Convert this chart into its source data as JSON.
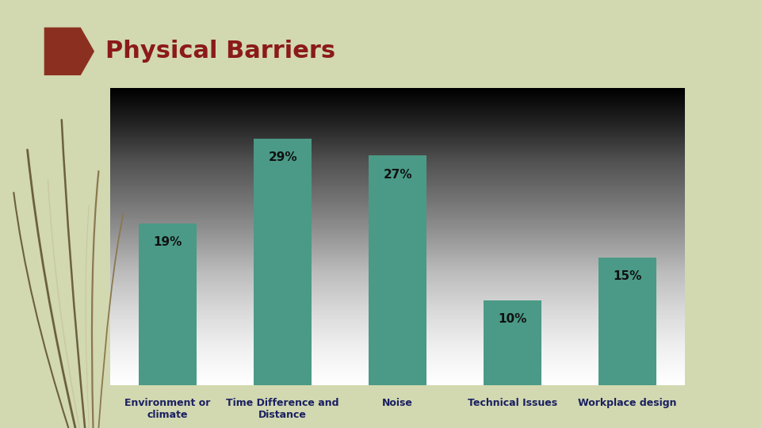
{
  "title": "Physical Barriers",
  "title_color": "#8B1A1A",
  "title_fontsize": 22,
  "categories": [
    "Environment or\nclimate",
    "Time Difference and\nDistance",
    "Noise",
    "Technical Issues",
    "Workplace design"
  ],
  "values": [
    19,
    29,
    27,
    10,
    15
  ],
  "bar_color": "#4A9A87",
  "label_fontsize": 11,
  "xlabel_fontsize": 9,
  "bg_slide_left": "#5A5A3A",
  "bg_slide": "#D2D8B0",
  "bg_chart_top": "#C8C8CC",
  "bg_chart_bot": "#F8F8FA",
  "arrow_color": "#8B3020",
  "label_color": "#111111",
  "xtick_color": "#1a2060",
  "deco_color1": "#6B6040",
  "deco_color2": "#8B7850"
}
